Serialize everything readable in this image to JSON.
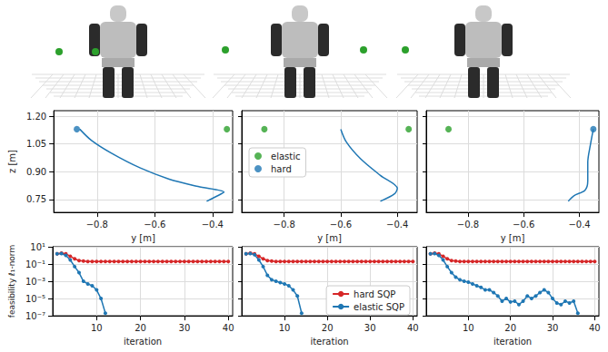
{
  "chart_data": [
    {
      "type": "line",
      "xlabel": "y [m]",
      "ylabel": "z [m]",
      "xlim": [
        -0.95,
        -0.33
      ],
      "ylim": [
        0.68,
        1.23
      ],
      "xticks": [
        {
          "value": -0.8,
          "label": "−0.8"
        },
        {
          "value": -0.6,
          "label": "−0.6"
        },
        {
          "value": -0.4,
          "label": "−0.4"
        }
      ],
      "yticks": [
        0.75,
        {
          "value": 0.9,
          "label": "0.90"
        },
        1.05,
        {
          "value": 1.2,
          "label": "1.20"
        }
      ],
      "grid": true,
      "series": [
        {
          "type": "line",
          "color": "#1f77b4",
          "x": [
            -0.42,
            -0.37,
            -0.36,
            -0.45,
            -0.55,
            -0.65,
            -0.75,
            -0.82,
            -0.86
          ],
          "values": [
            0.74,
            0.78,
            0.79,
            0.82,
            0.86,
            0.92,
            1.0,
            1.07,
            1.13
          ]
        },
        {
          "name": "elastic",
          "type": "scatter",
          "marker": "o",
          "color": "#2ca02c",
          "x": [
            -0.35
          ],
          "values": [
            1.13
          ]
        },
        {
          "name": "hard",
          "type": "scatter",
          "marker": "o",
          "color": "#1f77b4",
          "x": [
            -0.87
          ],
          "values": [
            1.13
          ]
        }
      ]
    },
    {
      "type": "line",
      "xlabel": "y [m]",
      "xlim": [
        -0.95,
        -0.33
      ],
      "ylim": [
        0.68,
        1.23
      ],
      "xticks": [
        {
          "value": -0.8,
          "label": "−0.8"
        },
        {
          "value": -0.6,
          "label": "−0.6"
        },
        {
          "value": -0.4,
          "label": "−0.4"
        }
      ],
      "yticks": [
        0.75,
        {
          "value": 0.9,
          "label": "0.90"
        },
        1.05,
        {
          "value": 1.2,
          "label": "1.20"
        }
      ],
      "grid": true,
      "tick_labels": "x",
      "legend": "center left",
      "series": [
        {
          "type": "line",
          "color": "#1f77b4",
          "x": [
            -0.46,
            -0.41,
            -0.4,
            -0.46,
            -0.53,
            -0.58,
            -0.6
          ],
          "values": [
            0.74,
            0.78,
            0.81,
            0.88,
            0.97,
            1.06,
            1.13
          ]
        },
        {
          "name": "elastic",
          "type": "scatter",
          "marker": "o",
          "color": "#2ca02c",
          "x": [
            -0.87,
            -0.36
          ],
          "values": [
            1.13,
            1.13
          ]
        },
        {
          "name": "hard",
          "type": "scatter",
          "marker": "o",
          "color": "#1f77b4",
          "x": [],
          "values": []
        }
      ]
    },
    {
      "type": "line",
      "xlabel": "y [m]",
      "xlim": [
        -0.95,
        -0.33
      ],
      "ylim": [
        0.68,
        1.23
      ],
      "xticks": [
        {
          "value": -0.8,
          "label": "−0.8"
        },
        {
          "value": -0.6,
          "label": "−0.6"
        },
        {
          "value": -0.4,
          "label": "−0.4"
        }
      ],
      "yticks": [
        0.75,
        {
          "value": 0.9,
          "label": "0.90"
        },
        1.05,
        {
          "value": 1.2,
          "label": "1.20"
        }
      ],
      "grid": true,
      "tick_labels": "x",
      "series": [
        {
          "type": "line",
          "color": "#1f77b4",
          "x": [
            -0.44,
            -0.42,
            -0.38,
            -0.37,
            -0.37,
            -0.36,
            -0.35
          ],
          "values": [
            0.74,
            0.77,
            0.8,
            0.85,
            0.95,
            1.05,
            1.13
          ]
        },
        {
          "name": "elastic",
          "type": "scatter",
          "marker": "o",
          "color": "#2ca02c",
          "x": [
            -0.87
          ],
          "values": [
            1.13
          ]
        },
        {
          "name": "hard",
          "type": "scatter",
          "marker": "o",
          "color": "#1f77b4",
          "x": [
            -0.35
          ],
          "values": [
            1.13
          ]
        }
      ]
    },
    {
      "type": "line",
      "xlabel": "iteration",
      "ylabel": "feasibility ℓ₁-norm",
      "log": "y",
      "xlim": [
        0,
        41
      ],
      "ylim": [
        1e-07,
        10
      ],
      "xticks": [
        10,
        20,
        30,
        40
      ],
      "yticks": [
        {
          "value": 10,
          "label": "10¹"
        },
        {
          "value": 0.1,
          "label": "10⁻¹"
        },
        {
          "value": 0.001,
          "label": "10⁻³"
        },
        {
          "value": 1e-05,
          "label": "10⁻⁵"
        },
        {
          "value": 1e-07,
          "label": "10⁻⁷"
        }
      ],
      "grid": true,
      "x": [
        1,
        2,
        3,
        4,
        5,
        6,
        7,
        8,
        9,
        10,
        11,
        12,
        13,
        14,
        15,
        16,
        17,
        18,
        19,
        20,
        21,
        22,
        23,
        24,
        25,
        26,
        27,
        28,
        29,
        30,
        31,
        32,
        33,
        34,
        35,
        36,
        37,
        38,
        39,
        40
      ],
      "series": [
        {
          "name": "hard SQP",
          "marker": "o",
          "color": "#d62728",
          "values": [
            1.5,
            1.8,
            1.5,
            0.8,
            0.4,
            0.25,
            0.22,
            0.2,
            0.2,
            0.2,
            0.2,
            0.2,
            0.2,
            0.2,
            0.2,
            0.2,
            0.2,
            0.2,
            0.2,
            0.2,
            0.2,
            0.2,
            0.2,
            0.2,
            0.2,
            0.2,
            0.2,
            0.2,
            0.2,
            0.2,
            0.2,
            0.2,
            0.2,
            0.2,
            0.2,
            0.2,
            0.2,
            0.2,
            0.2,
            0.2
          ]
        },
        {
          "name": "elastic SQP",
          "marker": "o",
          "color": "#1f77b4",
          "values": [
            1.5,
            1.6,
            1.0,
            0.3,
            0.05,
            0.01,
            0.001,
            0.0005,
            0.0003,
            0.0001,
            1e-05,
            2e-07,
            null,
            null,
            null,
            null,
            null,
            null,
            null,
            null,
            null,
            null,
            null,
            null,
            null,
            null,
            null,
            null,
            null,
            null,
            null,
            null,
            null,
            null,
            null,
            null,
            null,
            null,
            null,
            null
          ]
        }
      ]
    },
    {
      "type": "line",
      "xlabel": "iteration",
      "log": "y",
      "xlim": [
        0,
        41
      ],
      "ylim": [
        1e-07,
        10
      ],
      "xticks": [
        10,
        20,
        30,
        40
      ],
      "yticks": [
        {
          "value": 10,
          "label": "10¹"
        },
        {
          "value": 0.1,
          "label": "10⁻¹"
        },
        {
          "value": 0.001,
          "label": "10⁻³"
        },
        {
          "value": 1e-05,
          "label": "10⁻⁵"
        },
        {
          "value": 1e-07,
          "label": "10⁻⁷"
        }
      ],
      "grid": true,
      "tick_labels": "x",
      "legend": "lower right",
      "x": [
        1,
        2,
        3,
        4,
        5,
        6,
        7,
        8,
        9,
        10,
        11,
        12,
        13,
        14,
        15,
        16,
        17,
        18,
        19,
        20,
        21,
        22,
        23,
        24,
        25,
        26,
        27,
        28,
        29,
        30,
        31,
        32,
        33,
        34,
        35,
        36,
        37,
        38,
        39,
        40
      ],
      "series": [
        {
          "name": "hard SQP",
          "marker": "o",
          "color": "#d62728",
          "values": [
            1.5,
            1.8,
            1.5,
            0.8,
            0.4,
            0.25,
            0.22,
            0.2,
            0.2,
            0.2,
            0.2,
            0.2,
            0.2,
            0.2,
            0.2,
            0.2,
            0.2,
            0.2,
            0.2,
            0.2,
            0.2,
            0.2,
            0.2,
            0.2,
            0.2,
            0.2,
            0.2,
            0.2,
            0.2,
            0.2,
            0.2,
            0.2,
            0.2,
            0.2,
            0.2,
            0.2,
            0.2,
            0.2,
            0.2,
            0.2
          ]
        },
        {
          "name": "elastic SQP",
          "marker": "o",
          "color": "#1f77b4",
          "values": [
            1.5,
            1.6,
            1.2,
            0.3,
            0.05,
            0.005,
            0.0015,
            0.001,
            0.0007,
            0.0005,
            0.0003,
            0.0001,
            2e-05,
            2e-07,
            null,
            null,
            null,
            null,
            null,
            null,
            null,
            null,
            null,
            null,
            null,
            null,
            null,
            null,
            null,
            null,
            null,
            null,
            null,
            null,
            null,
            null,
            null,
            null,
            null,
            null
          ]
        }
      ]
    },
    {
      "type": "line",
      "xlabel": "iteration",
      "log": "y",
      "xlim": [
        0,
        41
      ],
      "ylim": [
        1e-07,
        10
      ],
      "xticks": [
        10,
        20,
        30,
        40
      ],
      "yticks": [
        {
          "value": 10,
          "label": "10¹"
        },
        {
          "value": 0.1,
          "label": "10⁻¹"
        },
        {
          "value": 0.001,
          "label": "10⁻³"
        },
        {
          "value": 1e-05,
          "label": "10⁻⁵"
        },
        {
          "value": 1e-07,
          "label": "10⁻⁷"
        }
      ],
      "grid": true,
      "tick_labels": "x",
      "x": [
        1,
        2,
        3,
        4,
        5,
        6,
        7,
        8,
        9,
        10,
        11,
        12,
        13,
        14,
        15,
        16,
        17,
        18,
        19,
        20,
        21,
        22,
        23,
        24,
        25,
        26,
        27,
        28,
        29,
        30,
        31,
        32,
        33,
        34,
        35,
        36,
        37,
        38,
        39,
        40
      ],
      "series": [
        {
          "name": "hard SQP",
          "marker": "o",
          "color": "#d62728",
          "values": [
            1.5,
            1.8,
            1.5,
            0.8,
            0.4,
            0.25,
            0.22,
            0.2,
            0.2,
            0.2,
            0.2,
            0.2,
            0.2,
            0.2,
            0.2,
            0.2,
            0.2,
            0.2,
            0.2,
            0.2,
            0.2,
            0.2,
            0.2,
            0.2,
            0.2,
            0.2,
            0.2,
            0.2,
            0.2,
            0.2,
            0.2,
            0.2,
            0.2,
            0.2,
            0.2,
            0.2,
            0.2,
            0.2,
            0.2,
            0.2
          ]
        },
        {
          "name": "elastic SQP",
          "marker": "o",
          "color": "#1f77b4",
          "values": [
            1.5,
            1.6,
            1.0,
            0.3,
            0.05,
            0.01,
            0.003,
            0.0015,
            0.001,
            0.0008,
            0.0005,
            0.0003,
            0.0002,
            0.0001,
            0.0001,
            5e-05,
            2e-05,
            5e-06,
            1e-05,
            4e-06,
            5e-06,
            2e-06,
            5e-06,
            2e-05,
            1e-05,
            2e-05,
            5e-05,
            0.0001,
            5e-05,
            1e-05,
            3e-06,
            2e-06,
            5e-06,
            3e-06,
            5e-06,
            2e-07,
            null,
            null,
            null,
            null
          ]
        }
      ]
    }
  ]
}
